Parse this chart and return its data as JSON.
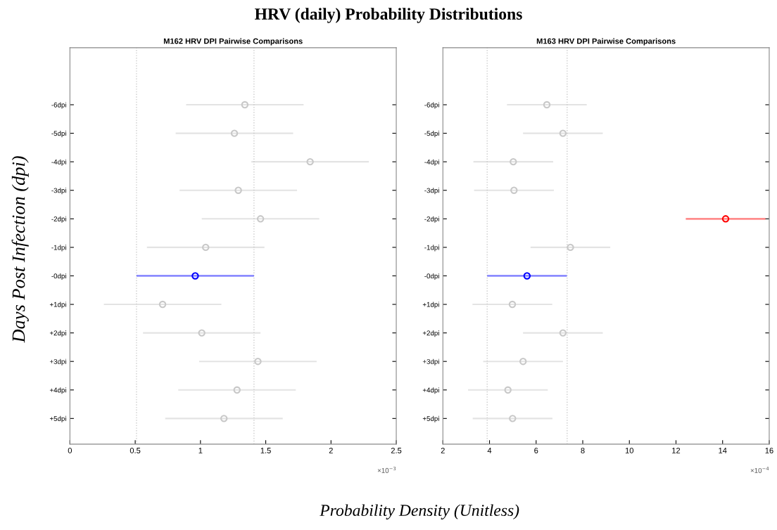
{
  "chart_data": [
    {
      "type": "scatter",
      "orientation": "horizontal",
      "title": "M162 HRV DPI Pairwise Comparisons",
      "categories": [
        "-6dpi",
        "-5dpi",
        "-4dpi",
        "-3dpi",
        "-2dpi",
        "-1dpi",
        "-0dpi",
        "+1dpi",
        "+2dpi",
        "+3dpi",
        "+4dpi",
        "+5dpi"
      ],
      "values": [
        1.34,
        1.26,
        1.84,
        1.29,
        1.46,
        1.04,
        0.96,
        0.71,
        1.01,
        1.44,
        1.28,
        1.18
      ],
      "errors": [
        0.45,
        0.45,
        0.45,
        0.45,
        0.45,
        0.45,
        0.45,
        0.45,
        0.45,
        0.45,
        0.45,
        0.45
      ],
      "colors": [
        "#c8c8c8",
        "#c8c8c8",
        "#c8c8c8",
        "#c8c8c8",
        "#c8c8c8",
        "#c8c8c8",
        "#0000ff",
        "#c8c8c8",
        "#c8c8c8",
        "#c8c8c8",
        "#c8c8c8",
        "#c8c8c8"
      ],
      "marker": "circle",
      "xlim": [
        0,
        2.5
      ],
      "xticks": [
        0,
        0.5,
        1,
        1.5,
        2,
        2.5
      ],
      "ref_lines": [
        {
          "axis": "x",
          "value": 0.51,
          "color": "#cccccc",
          "line_style": "dotted"
        },
        {
          "axis": "x",
          "value": 1.41,
          "color": "#cccccc",
          "line_style": "dotted"
        }
      ],
      "annotations": [
        "×10$^{−3}$"
      ]
    },
    {
      "type": "scatter",
      "orientation": "horizontal",
      "title": "M163 HRV DPI Pairwise Comparisons",
      "categories": [
        "-6dpi",
        "-5dpi",
        "-4dpi",
        "-3dpi",
        "-2dpi",
        "-1dpi",
        "-0dpi",
        "+1dpi",
        "+2dpi",
        "+3dpi",
        "+4dpi",
        "+5dpi"
      ],
      "values": [
        6.46,
        7.15,
        5.02,
        5.05,
        14.13,
        7.47,
        5.61,
        4.98,
        7.15,
        5.44,
        4.79,
        4.99
      ],
      "errors": [
        1.71,
        1.71,
        1.71,
        1.71,
        1.71,
        1.71,
        1.71,
        1.71,
        1.71,
        1.71,
        1.71,
        1.71
      ],
      "colors": [
        "#c8c8c8",
        "#c8c8c8",
        "#c8c8c8",
        "#c8c8c8",
        "#ff0000",
        "#c8c8c8",
        "#0000ff",
        "#c8c8c8",
        "#c8c8c8",
        "#c8c8c8",
        "#c8c8c8",
        "#c8c8c8"
      ],
      "marker": "circle",
      "xlim": [
        2,
        16
      ],
      "xticks": [
        2,
        4,
        6,
        8,
        10,
        12,
        14,
        16
      ],
      "ref_lines": [
        {
          "axis": "x",
          "value": 3.9,
          "color": "#cccccc",
          "line_style": "dotted"
        },
        {
          "axis": "x",
          "value": 7.33,
          "color": "#cccccc",
          "line_style": "dotted"
        }
      ],
      "annotations": [
        "×10$^{−4}$"
      ]
    },
    {
      "type": "other",
      "title": "HRV (daily) Probability Distributions",
      "xlabel": "Probability Density (Unitless)",
      "ylabel": "Days Post Infection (dpi)"
    }
  ]
}
